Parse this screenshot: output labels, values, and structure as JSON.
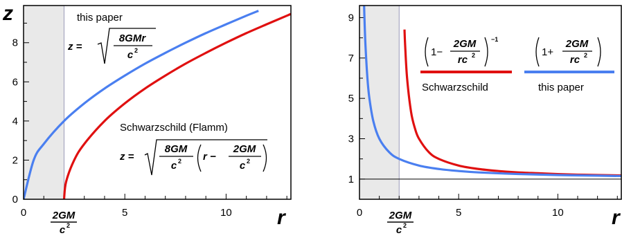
{
  "chart_data": [
    {
      "type": "line",
      "title": "",
      "xlabel": "r",
      "ylabel": "z",
      "xlim": [
        0,
        13.2
      ],
      "ylim": [
        0,
        9.9
      ],
      "shaded_region": [
        0,
        2
      ],
      "x_ticks": [
        {
          "value": 0,
          "label": "0"
        },
        {
          "value": 2,
          "label": "2GM/c²"
        },
        {
          "value": 5,
          "label": "5"
        },
        {
          "value": 10,
          "label": "10"
        }
      ],
      "y_ticks": [
        {
          "value": 0,
          "label": "0"
        },
        {
          "value": 2,
          "label": "2"
        },
        {
          "value": 4,
          "label": "4"
        },
        {
          "value": 6,
          "label": "6"
        },
        {
          "value": 8,
          "label": "8"
        }
      ],
      "frac_numerator": "2GM",
      "frac_denominator": "c",
      "frac_exponent": "2",
      "series": [
        {
          "name": "this paper",
          "formula": {
            "lhs": "z =",
            "num": "8GMr",
            "den": "c",
            "exp": "2"
          },
          "color": "#4a7ff0",
          "x": [
            0,
            0.5,
            1,
            2,
            3,
            4,
            5,
            6,
            7,
            8,
            9,
            10,
            11,
            11.6
          ],
          "y": [
            0,
            2.0,
            2.83,
            4.0,
            4.9,
            5.66,
            6.32,
            6.93,
            7.48,
            8.0,
            8.49,
            8.94,
            9.38,
            9.63
          ]
        },
        {
          "name": "Schwarzschild (Flamm)",
          "formula": {
            "lhs": "z =",
            "num": "8GM",
            "den": "c",
            "exp": "2",
            "inner_left": "r −",
            "inner_num": "2GM",
            "inner_den": "c",
            "inner_exp": "2"
          },
          "color": "#e01010",
          "x": [
            2,
            2.1,
            2.5,
            3,
            4,
            5,
            6,
            7,
            8,
            9,
            10,
            11,
            12,
            13,
            13.2
          ],
          "y": [
            0,
            0.89,
            2.0,
            2.83,
            4.0,
            4.9,
            5.66,
            6.32,
            6.93,
            7.48,
            8.0,
            8.49,
            8.94,
            9.38,
            9.47
          ]
        }
      ]
    },
    {
      "type": "line",
      "title": "",
      "xlabel": "r",
      "ylabel": "",
      "xlim": [
        0,
        13.2
      ],
      "ylim": [
        0,
        9.6
      ],
      "shaded_region": [
        0,
        2
      ],
      "reference_line_y": 1,
      "x_ticks": [
        {
          "value": 0,
          "label": "0"
        },
        {
          "value": 2,
          "label": "2GM/c²"
        },
        {
          "value": 5,
          "label": "5"
        },
        {
          "value": 10,
          "label": "10"
        }
      ],
      "y_ticks": [
        {
          "value": 1,
          "label": "1"
        },
        {
          "value": 3,
          "label": "3"
        },
        {
          "value": 5,
          "label": "5"
        },
        {
          "value": 7,
          "label": "7"
        },
        {
          "value": 9,
          "label": "9"
        }
      ],
      "frac_numerator": "2GM",
      "frac_denominator": "c",
      "frac_exponent": "2",
      "series": [
        {
          "name": "Schwarzschild",
          "formula": {
            "left": "1−",
            "num": "2GM",
            "den": "rc",
            "exp": "2",
            "power": "−1"
          },
          "color": "#e01010",
          "x": [
            2.27,
            2.3,
            2.4,
            2.6,
            2.8,
            3,
            3.5,
            4,
            5,
            6,
            7,
            8,
            9,
            10,
            11,
            12,
            13.2
          ],
          "y": [
            8.41,
            7.67,
            6.0,
            4.33,
            3.5,
            3.0,
            2.33,
            2.0,
            1.67,
            1.5,
            1.4,
            1.33,
            1.29,
            1.25,
            1.22,
            1.2,
            1.18
          ]
        },
        {
          "name": "this paper",
          "formula": {
            "left": "1+",
            "num": "2GM",
            "den": "rc",
            "exp": "2"
          },
          "color": "#4a7ff0",
          "x": [
            0.23,
            0.25,
            0.3,
            0.4,
            0.5,
            0.7,
            1,
            1.5,
            2,
            3,
            4,
            5,
            6,
            8,
            10,
            12,
            13.2
          ],
          "y": [
            9.7,
            9.0,
            7.67,
            6.0,
            5.0,
            3.86,
            3.0,
            2.33,
            2.0,
            1.67,
            1.5,
            1.4,
            1.33,
            1.25,
            1.2,
            1.17,
            1.15
          ]
        }
      ]
    }
  ]
}
